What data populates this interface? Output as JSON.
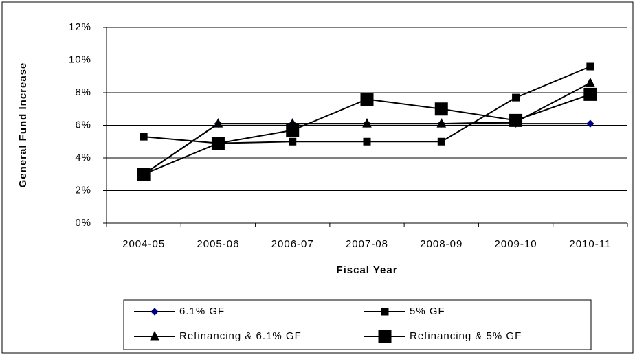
{
  "chart_data": {
    "type": "line",
    "x_label": "Fiscal Year",
    "y_label": "General Fund Increase",
    "categories": [
      "2004-05",
      "2005-06",
      "2006-07",
      "2007-08",
      "2008-09",
      "2009-10",
      "2010-11"
    ],
    "series": [
      {
        "name": "6.1% GF",
        "color": "#000080",
        "marker": "diamond",
        "values": [
          3.0,
          6.1,
          6.1,
          6.1,
          6.1,
          6.1,
          6.1
        ]
      },
      {
        "name": "5% GF",
        "color": "#000000",
        "marker": "square",
        "values": [
          5.3,
          4.9,
          5.0,
          5.0,
          5.0,
          7.7,
          9.6
        ]
      },
      {
        "name": "Refinancing & 6.1% GF",
        "color": "#000000",
        "marker": "triangle",
        "values": [
          3.0,
          6.1,
          6.1,
          6.1,
          6.1,
          6.2,
          8.6
        ]
      },
      {
        "name": "Refinancing & 5% GF",
        "color": "#000000",
        "marker": "big-square",
        "values": [
          3.0,
          4.9,
          5.7,
          7.6,
          7.0,
          6.3,
          7.9
        ]
      }
    ],
    "ylim": [
      0,
      12
    ],
    "yticks": [
      {
        "value": 0,
        "label": "0%"
      },
      {
        "value": 2,
        "label": "2%"
      },
      {
        "value": 4,
        "label": "4%"
      },
      {
        "value": 6,
        "label": "6%"
      },
      {
        "value": 8,
        "label": "8%"
      },
      {
        "value": 10,
        "label": "10%"
      },
      {
        "value": 12,
        "label": "12%"
      }
    ],
    "grid": true
  }
}
